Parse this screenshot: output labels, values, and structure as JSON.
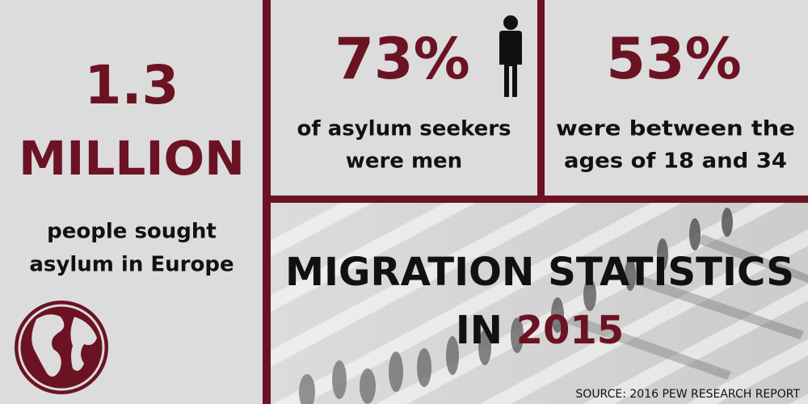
{
  "left_panel": {
    "number": "1.3",
    "unit": "MILLION",
    "caption": [
      "people sought",
      "asylum in Europe"
    ]
  },
  "middle_panel": {
    "number": "73%",
    "caption": [
      "of asylum seekers",
      "were men"
    ]
  },
  "right_panel": {
    "number": "53%",
    "caption": [
      "were between the",
      "ages of 18 and 34"
    ]
  },
  "banner": {
    "title_line1": "MIGRATION STATISTICS",
    "title_line2": {
      "prefix": "IN",
      "year": "2015"
    },
    "source": "SOURCE: 2016 PEW RESEARCH REPORT"
  }
}
